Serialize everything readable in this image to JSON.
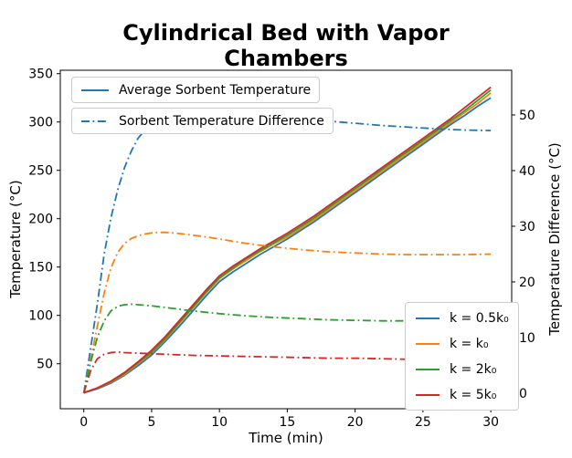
{
  "title": "Cylindrical Bed with Vapor Chambers",
  "chart_data": {
    "type": "line",
    "title": "Cylindrical Bed with Vapor Chambers",
    "xlabel": "Time (min)",
    "ylabel_left": "Temperature (°C)",
    "ylabel_right": "Temperature Difference (°C)",
    "x_ticks": [
      0,
      5,
      10,
      15,
      20,
      25,
      30
    ],
    "yleft_ticks": [
      50,
      100,
      150,
      200,
      250,
      300,
      350
    ],
    "yright_ticks": [
      0,
      10,
      20,
      30,
      40,
      50
    ],
    "xlim": [
      -1.73,
      31.54
    ],
    "ylim_left": [
      3.5,
      353.5
    ],
    "ylim_right": [
      -2.79,
      58.03
    ],
    "grid": false,
    "series": [
      {
        "name": "Average Sorbent Temperature, k = 0.5k₀",
        "axis": "left",
        "style": "solid",
        "color": "#1f77b4",
        "x": [
          0,
          1,
          2,
          3,
          4,
          5,
          6,
          7,
          8,
          9,
          10,
          11,
          12,
          13,
          14,
          15,
          16,
          17,
          18,
          19,
          20,
          21,
          22,
          23,
          24,
          25,
          26,
          27,
          28,
          29,
          30
        ],
        "y": [
          20,
          24,
          30,
          38,
          48,
          59,
          73,
          88,
          104,
          120,
          135,
          145,
          154,
          163,
          171,
          179,
          188,
          197,
          207,
          217,
          227,
          237,
          247,
          257,
          267,
          277,
          287,
          297,
          306,
          316,
          325
        ]
      },
      {
        "name": "Average Sorbent Temperature, k = k₀",
        "axis": "left",
        "style": "solid",
        "color": "#ff7f0e",
        "x": [
          0,
          1,
          2,
          3,
          4,
          5,
          6,
          7,
          8,
          9,
          10,
          11,
          12,
          13,
          14,
          15,
          16,
          17,
          18,
          19,
          20,
          21,
          22,
          23,
          24,
          25,
          26,
          27,
          28,
          29,
          30
        ],
        "y": [
          20,
          24.5,
          31,
          39,
          50,
          61,
          75,
          91,
          107,
          123,
          138,
          148,
          157,
          166,
          174,
          181,
          190,
          199,
          209,
          219,
          229,
          239,
          249,
          259,
          269,
          279,
          289,
          299,
          309,
          319,
          330
        ]
      },
      {
        "name": "Average Sorbent Temperature, k = 2k₀",
        "axis": "left",
        "style": "solid",
        "color": "#2ca02c",
        "x": [
          0,
          1,
          2,
          3,
          4,
          5,
          6,
          7,
          8,
          9,
          10,
          11,
          12,
          13,
          14,
          15,
          16,
          17,
          18,
          19,
          20,
          21,
          22,
          23,
          24,
          25,
          26,
          27,
          28,
          29,
          30
        ],
        "y": [
          20,
          24.7,
          31.5,
          40,
          51,
          62,
          76,
          92,
          108,
          124,
          139,
          149,
          159,
          167,
          175,
          183,
          192,
          201,
          211,
          221,
          231,
          241,
          251,
          261,
          271,
          281,
          291,
          301,
          311,
          322,
          333
        ]
      },
      {
        "name": "Average Sorbent Temperature, k = 5k₀",
        "axis": "left",
        "style": "solid",
        "color": "#d62728",
        "x": [
          0,
          1,
          2,
          3,
          4,
          5,
          6,
          7,
          8,
          9,
          10,
          11,
          12,
          13,
          14,
          15,
          16,
          17,
          18,
          19,
          20,
          21,
          22,
          23,
          24,
          25,
          26,
          27,
          28,
          29,
          30
        ],
        "y": [
          20,
          25,
          32,
          41,
          52,
          64,
          78,
          94,
          110,
          126,
          141,
          151,
          160,
          169,
          177,
          185,
          194,
          203,
          213,
          223,
          233,
          243,
          253,
          263,
          273,
          283,
          293,
          303,
          314,
          325,
          336
        ]
      },
      {
        "name": "Sorbent Temperature Difference, k = 0.5k₀",
        "axis": "right",
        "style": "dashdot",
        "color": "#1f77b4",
        "x": [
          0,
          0.5,
          1,
          1.5,
          2,
          2.5,
          3,
          3.5,
          4,
          4.5,
          5,
          6,
          7,
          8,
          10,
          12,
          14,
          16,
          18,
          20,
          22,
          24,
          26,
          28,
          30
        ],
        "y": [
          0,
          8,
          16,
          25,
          31.5,
          36.5,
          40.5,
          43.5,
          45.8,
          47.3,
          48.3,
          49.4,
          49.9,
          50.2,
          50.4,
          50.2,
          49.8,
          49.3,
          48.9,
          48.5,
          48.1,
          47.8,
          47.5,
          47.3,
          47.2
        ]
      },
      {
        "name": "Sorbent Temperature Difference, k = k₀",
        "axis": "right",
        "style": "dashdot",
        "color": "#ff7f0e",
        "x": [
          0,
          0.5,
          1,
          1.5,
          2,
          2.5,
          3,
          3.5,
          4,
          4.5,
          5,
          5.5,
          6,
          7,
          8,
          9,
          10,
          12,
          14,
          16,
          18,
          20,
          22,
          24,
          26,
          28,
          30
        ],
        "y": [
          0,
          6,
          12,
          18,
          22.5,
          25.3,
          26.9,
          27.8,
          28.3,
          28.6,
          28.8,
          28.9,
          28.9,
          28.7,
          28.4,
          28.1,
          27.7,
          26.9,
          26.3,
          25.8,
          25.4,
          25.2,
          25,
          24.9,
          24.9,
          24.9,
          25
        ]
      },
      {
        "name": "Sorbent Temperature Difference, k = 2k₀",
        "axis": "right",
        "style": "dashdot",
        "color": "#2ca02c",
        "x": [
          0,
          0.5,
          1,
          1.5,
          2,
          2.5,
          3,
          3.5,
          4,
          5,
          6,
          8,
          10,
          12,
          14,
          16,
          18,
          20,
          22,
          24,
          26,
          28,
          30
        ],
        "y": [
          0,
          5.5,
          10,
          13,
          14.8,
          15.6,
          15.9,
          16,
          15.9,
          15.7,
          15.4,
          14.8,
          14.3,
          13.9,
          13.6,
          13.4,
          13.2,
          13.1,
          13,
          13,
          12.9,
          12.9,
          12.9
        ]
      },
      {
        "name": "Sorbent Temperature Difference, k = 5k₀",
        "axis": "right",
        "style": "dashdot",
        "color": "#d62728",
        "x": [
          0,
          0.5,
          1,
          1.5,
          2,
          2.5,
          3,
          4,
          5,
          6,
          8,
          10,
          12,
          14,
          16,
          18,
          20,
          22,
          24,
          26,
          28,
          30
        ],
        "y": [
          0,
          4,
          6.2,
          7,
          7.3,
          7.4,
          7.3,
          7.2,
          7.1,
          7,
          6.8,
          6.7,
          6.6,
          6.5,
          6.4,
          6.3,
          6.3,
          6.2,
          6.1,
          6.1,
          6.1,
          6
        ]
      }
    ],
    "legend_position": [
      "upper left",
      "lower right"
    ]
  },
  "legend_top": {
    "items": [
      {
        "label": "Average Sorbent Temperature",
        "color": "#1f77b4",
        "style": "solid"
      },
      {
        "label": "Sorbent Temperature Difference",
        "color": "#1f77b4",
        "style": "dashdot"
      }
    ]
  },
  "legend_series": {
    "items": [
      {
        "label": "k = 0.5k₀",
        "color": "#1f77b4",
        "style": "solid"
      },
      {
        "label": "k = k₀",
        "color": "#ff7f0e",
        "style": "solid"
      },
      {
        "label": "k = 2k₀",
        "color": "#2ca02c",
        "style": "solid"
      },
      {
        "label": "k = 5k₀",
        "color": "#d62728",
        "style": "solid"
      }
    ]
  },
  "colors": {
    "blue": "#1f77b4",
    "orange": "#ff7f0e",
    "green": "#2ca02c",
    "red": "#d62728",
    "spine": "#000000",
    "legend_edge": "#cccccc",
    "background": "#ffffff"
  }
}
